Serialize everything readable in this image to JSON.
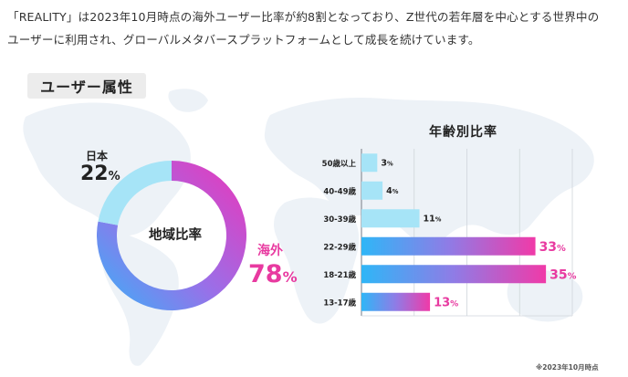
{
  "intro": {
    "line1": "「REALITY」は2023年10月時点の海外ユーザー比率が約8割となっており、Z世代の若年層を中心とする世界中の",
    "line2": "ユーザーに利用され、グローバルメタバースプラットフォームとして成長を続けています。"
  },
  "section_title": "ユーザー属性",
  "footnote": "※2023年10月時点",
  "chart_data": [
    {
      "type": "pie",
      "title": "地域比率",
      "donut": true,
      "slices": [
        {
          "name": "日本",
          "value": 22,
          "value_label": "22",
          "color": "#a6e4f7"
        },
        {
          "name": "海外",
          "value": 78,
          "value_label": "78",
          "color_start": "#ec35b9",
          "color_end": "#38b2f8"
        }
      ],
      "unit": "%"
    },
    {
      "type": "bar",
      "orientation": "horizontal",
      "title": "年齢別比率",
      "categories": [
        "50歳以上",
        "40-49歳",
        "30-39歳",
        "22-29歳",
        "18-21歳",
        "13-17歳"
      ],
      "values": [
        3,
        4,
        11,
        33,
        35,
        13
      ],
      "value_labels": [
        "3",
        "4",
        "11",
        "33",
        "35",
        "13"
      ],
      "unit": "%",
      "xlim": [
        0,
        40
      ],
      "grid": true,
      "colors": {
        "light": "#a6e4f7",
        "gradient_start": "#2fb6f7",
        "gradient_end": "#f03aa8",
        "label_pink": "#e83aa0",
        "label_dark": "#222222"
      }
    }
  ]
}
